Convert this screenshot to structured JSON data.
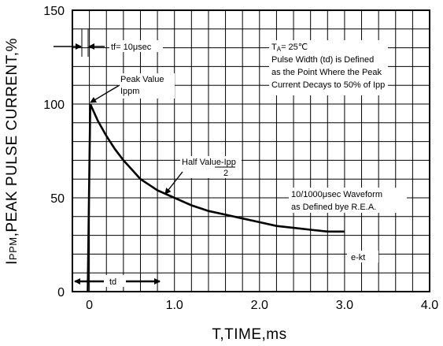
{
  "chart_data": {
    "type": "line",
    "title": "",
    "xlabel": "T,TIME,ms",
    "ylabel_main": "I",
    "ylabel_sub": "PPM",
    "ylabel_rest": ",PEAK PULSE CURRENT,%",
    "xlim": [
      -0.2,
      4.0
    ],
    "ylim": [
      0,
      150
    ],
    "x_ticks": [
      {
        "value": 0,
        "label": "0"
      },
      {
        "value": 1,
        "label": "1.0"
      },
      {
        "value": 2,
        "label": "2.0"
      },
      {
        "value": 3,
        "label": "3.0"
      },
      {
        "value": 4,
        "label": "4.0"
      }
    ],
    "y_ticks": [
      {
        "value": 0,
        "label": "0"
      },
      {
        "value": 50,
        "label": "50"
      },
      {
        "value": 100,
        "label": "100"
      },
      {
        "value": 150,
        "label": "150"
      }
    ],
    "grid": true,
    "series": [
      {
        "values": [
          {
            "x": -0.02,
            "y": 0
          },
          {
            "x": 0.01,
            "y": 100
          },
          {
            "x": 0.03,
            "y": 98
          },
          {
            "x": 0.1,
            "y": 91
          },
          {
            "x": 0.2,
            "y": 83
          },
          {
            "x": 0.3,
            "y": 76
          },
          {
            "x": 0.4,
            "y": 70
          },
          {
            "x": 0.5,
            "y": 65
          },
          {
            "x": 0.6,
            "y": 60
          },
          {
            "x": 0.7,
            "y": 57
          },
          {
            "x": 0.8,
            "y": 54
          },
          {
            "x": 1.0,
            "y": 50
          },
          {
            "x": 1.2,
            "y": 46
          },
          {
            "x": 1.4,
            "y": 43
          },
          {
            "x": 1.6,
            "y": 41
          },
          {
            "x": 1.8,
            "y": 39
          },
          {
            "x": 2.0,
            "y": 37
          },
          {
            "x": 2.2,
            "y": 35
          },
          {
            "x": 2.4,
            "y": 34
          },
          {
            "x": 2.6,
            "y": 33
          },
          {
            "x": 2.8,
            "y": 32
          },
          {
            "x": 2.9,
            "y": 32
          },
          {
            "x": 3.0,
            "y": 32
          }
        ]
      }
    ],
    "annotations": {
      "tf": "tf= 10μsec",
      "conditions_ta": "T",
      "conditions_ta_sub": "A",
      "conditions_ta_val": "= 25℃",
      "conditions_line2": "Pulse Width (td) is Defined",
      "conditions_line3": "as the Point Where the Peak",
      "conditions_line4": "Current Decays to 50% of Ipp",
      "peak_line1": "Peak Value",
      "peak_line2": "Ippm",
      "half_line1": "Half Value-Ipp",
      "half_line2": "2",
      "waveform_line1": "10/1000μsec Waveform",
      "waveform_line2": "as Defined bye R.E.A.",
      "ekt": "e-kt",
      "td": "td"
    }
  }
}
